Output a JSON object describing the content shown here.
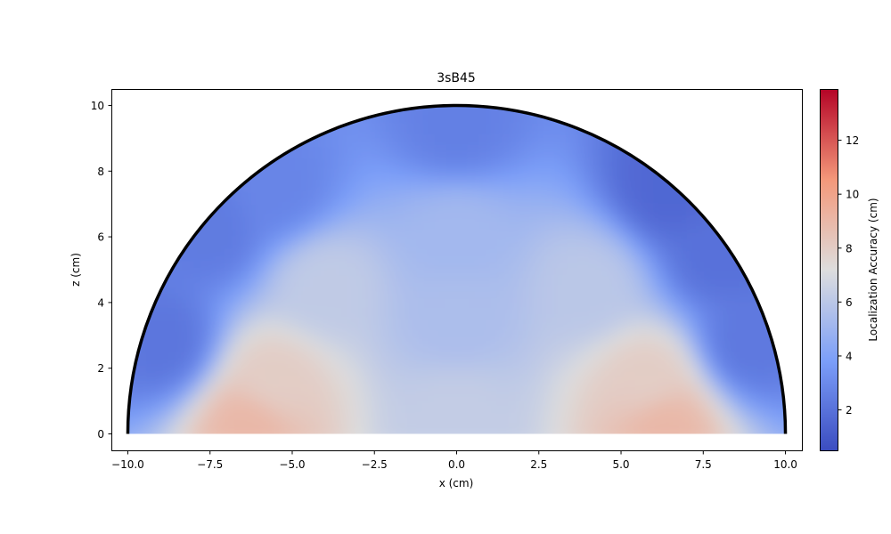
{
  "chart_data": {
    "type": "heatmap",
    "title": "3sB45",
    "xlabel": "x (cm)",
    "ylabel": "z (cm)",
    "xlim": [
      -10.5,
      10.5
    ],
    "ylim": [
      -0.5,
      10.5
    ],
    "xticks": [
      -10.0,
      -7.5,
      -5.0,
      -2.5,
      0.0,
      2.5,
      5.0,
      7.5,
      10.0
    ],
    "xtick_labels": [
      "−10.0",
      "−7.5",
      "−5.0",
      "−2.5",
      "0.0",
      "2.5",
      "5.0",
      "7.5",
      "10.0"
    ],
    "yticks": [
      0,
      2,
      4,
      6,
      8,
      10
    ],
    "ytick_labels": [
      "0",
      "2",
      "4",
      "6",
      "8",
      "10"
    ],
    "grid": false,
    "domain": {
      "shape": "semicircle",
      "radius": 10,
      "center": [
        0,
        0
      ]
    },
    "colorbar": {
      "label": "Localization Accuracy (cm)",
      "range": [
        0.5,
        13.9
      ],
      "ticks": [
        2,
        4,
        6,
        8,
        10,
        12
      ],
      "tick_labels": [
        "2",
        "4",
        "6",
        "8",
        "10",
        "12"
      ],
      "colormap": "coolwarm"
    },
    "field_samples": [
      {
        "x": -6.3,
        "z": 0.3,
        "value": 9.0
      },
      {
        "x": 6.3,
        "z": 0.3,
        "value": 9.0
      },
      {
        "x": -5.6,
        "z": 1.6,
        "value": 8.0
      },
      {
        "x": 5.8,
        "z": 1.6,
        "value": 8.0
      },
      {
        "x": 0.0,
        "z": 0.6,
        "value": 6.3
      },
      {
        "x": 0.0,
        "z": 3.5,
        "value": 5.5
      },
      {
        "x": 0.0,
        "z": 6.0,
        "value": 5.2
      },
      {
        "x": -4.0,
        "z": 4.5,
        "value": 6.2
      },
      {
        "x": 4.0,
        "z": 4.5,
        "value": 6.0
      },
      {
        "x": -8.9,
        "z": 2.8,
        "value": 2.2
      },
      {
        "x": 8.9,
        "z": 2.8,
        "value": 2.3
      },
      {
        "x": -5.5,
        "z": 7.5,
        "value": 2.8
      },
      {
        "x": 6.5,
        "z": 7.5,
        "value": 1.6
      },
      {
        "x": 0.0,
        "z": 9.4,
        "value": 2.6
      },
      {
        "x": -7.5,
        "z": 6.2,
        "value": 2.4
      },
      {
        "x": 8.0,
        "z": 5.5,
        "value": 2.0
      }
    ]
  }
}
